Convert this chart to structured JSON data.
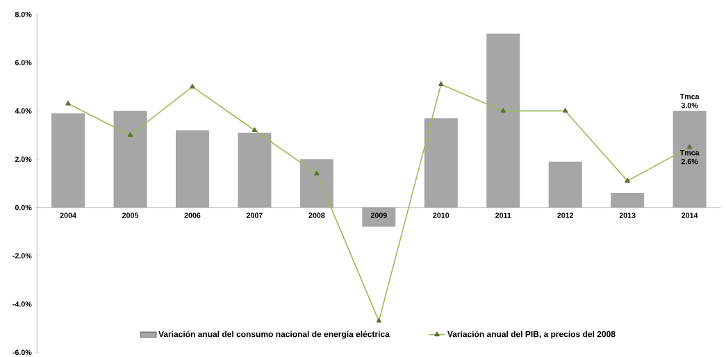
{
  "chart_data": {
    "type": "bar",
    "categories": [
      "2004",
      "2005",
      "2006",
      "2007",
      "2008",
      "2009",
      "2010",
      "2011",
      "2012",
      "2013",
      "2014"
    ],
    "series": [
      {
        "name": "Variación anual del consumo nacional de energía eléctrica",
        "color": "#a6a6a6",
        "values": [
          3.9,
          4.0,
          3.2,
          3.1,
          2.0,
          -0.8,
          3.7,
          7.2,
          1.9,
          0.6,
          4.0
        ]
      },
      {
        "name": "Variación anual del PIB, a precios del 2008",
        "type": "line",
        "color": "#9bbb59",
        "marker": "triangle",
        "values": [
          4.3,
          3.0,
          5.0,
          3.2,
          1.4,
          -4.7,
          5.1,
          4.0,
          4.0,
          1.1,
          2.5
        ]
      }
    ],
    "ylim": [
      -6,
      8
    ],
    "yticks": [
      {
        "value": -6,
        "label": "-6.0%"
      },
      {
        "value": -4,
        "label": "-4.0%"
      },
      {
        "value": -2,
        "label": "-2.0%"
      },
      {
        "value": 0,
        "label": "0.0%"
      },
      {
        "value": 2,
        "label": "2.0%"
      },
      {
        "value": 4,
        "label": "4.0%"
      },
      {
        "value": 6,
        "label": "6.0%"
      },
      {
        "value": 8,
        "label": "8.0%"
      }
    ],
    "annotations": [
      {
        "text": "Tmca 3.0%",
        "x": "2014",
        "y": 4.0
      },
      {
        "text": "Tmca 2.6%",
        "x": "2014",
        "y": 2.5
      }
    ],
    "legend": "bottom",
    "grid": false
  }
}
